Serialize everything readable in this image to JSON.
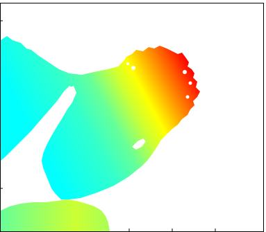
{
  "map": {
    "style": {
      "background": "#ffffff",
      "frame_color": "#000000"
    },
    "colormap": {
      "name": "jet",
      "stops": [
        "#00ffff",
        "#33ffcc",
        "#66ff99",
        "#ccff33",
        "#ffff00",
        "#ffaa00",
        "#ff5500",
        "#ff0000",
        "#990000"
      ]
    },
    "regions": [
      {
        "name": "north-peninsula",
        "value": 0.82
      },
      {
        "name": "west-landmass",
        "value": 0.42
      },
      {
        "name": "south-landmass",
        "value": 0.48
      }
    ],
    "water_features": [
      {
        "name": "channel"
      },
      {
        "name": "lake"
      }
    ]
  }
}
